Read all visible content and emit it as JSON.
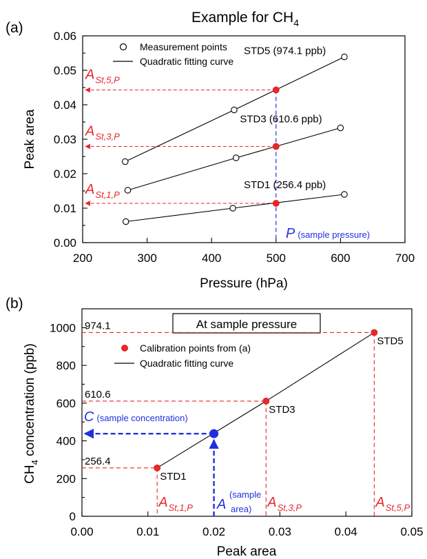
{
  "colors": {
    "red": "#e8262b",
    "blue": "#2030e0",
    "black": "#000000"
  },
  "chart_data": [
    {
      "type": "line",
      "panel_label": "(a)",
      "title_prefix": "Example for CH",
      "title_subscript": "4",
      "xlabel": "Pressure (hPa)",
      "ylabel": "Peak area",
      "xlim": [
        200,
        700
      ],
      "ylim": [
        0,
        0.06
      ],
      "xticks": [
        200,
        300,
        400,
        500,
        600,
        700
      ],
      "yticks": [
        0.0,
        0.01,
        0.02,
        0.03,
        0.04,
        0.05,
        0.06
      ],
      "ytick_labels": [
        "0.00",
        "0.01",
        "0.02",
        "0.03",
        "0.04",
        "0.05",
        "0.06"
      ],
      "legend": {
        "position": "top-left",
        "markers_label": "Measurement points",
        "line_label": "Quadratic fitting curve"
      },
      "series": [
        {
          "name": "STD5 (974.1 ppb)",
          "x": [
            266,
            435,
            606
          ],
          "y": [
            0.0235,
            0.0385,
            0.0539
          ],
          "at_sample": 0.0443,
          "ref_label": "A",
          "ref_sub": "St,5,P"
        },
        {
          "name": "STD3 (610.6 ppb)",
          "x": [
            270,
            438,
            600
          ],
          "y": [
            0.0152,
            0.0246,
            0.0333
          ],
          "at_sample": 0.0279,
          "ref_label": "A",
          "ref_sub": "St,3,P"
        },
        {
          "name": "STD1 (256.4 ppb)",
          "x": [
            267,
            433,
            606
          ],
          "y": [
            0.0061,
            0.01,
            0.014
          ],
          "at_sample": 0.0114,
          "ref_label": "A",
          "ref_sub": "St,1,P"
        }
      ],
      "sample_pressure": 500,
      "sample_pressure_symbol": "P",
      "sample_pressure_note": "(sample pressure)"
    },
    {
      "type": "line",
      "panel_label": "(b)",
      "box_title": "At sample pressure",
      "xlabel": "Peak area",
      "ylabel_prefix": "CH",
      "ylabel_subscript": "4",
      "ylabel_suffix": " concentration (ppb)",
      "xlim": [
        0,
        0.05
      ],
      "ylim": [
        0,
        1100
      ],
      "xticks": [
        0.0,
        0.01,
        0.02,
        0.03,
        0.04,
        0.05
      ],
      "xtick_labels": [
        "0.00",
        "0.01",
        "0.02",
        "0.03",
        "0.04",
        "0.05"
      ],
      "yticks": [
        0,
        200,
        400,
        600,
        800,
        1000
      ],
      "legend": {
        "position": "top-left",
        "markers_label": "Calibration points from (a)",
        "line_label": "Quadratic fitting curve"
      },
      "points": [
        {
          "name": "STD1",
          "x": 0.0114,
          "y": 256.4,
          "value_label": "256.4",
          "ref_label": "A",
          "ref_sub": "St,1,P"
        },
        {
          "name": "STD3",
          "x": 0.0279,
          "y": 610.6,
          "value_label": "610.6",
          "ref_label": "A",
          "ref_sub": "St,3,P"
        },
        {
          "name": "STD5",
          "x": 0.0443,
          "y": 974.1,
          "value_label": "974.1",
          "ref_label": "A",
          "ref_sub": "St,5,P"
        }
      ],
      "sample": {
        "x": 0.02,
        "y": 438
      },
      "sample_conc_symbol": "C",
      "sample_conc_note": "(sample concentration)",
      "sample_area_symbol": "A",
      "sample_area_note_1": "(sample",
      "sample_area_note_2": "area)"
    }
  ]
}
